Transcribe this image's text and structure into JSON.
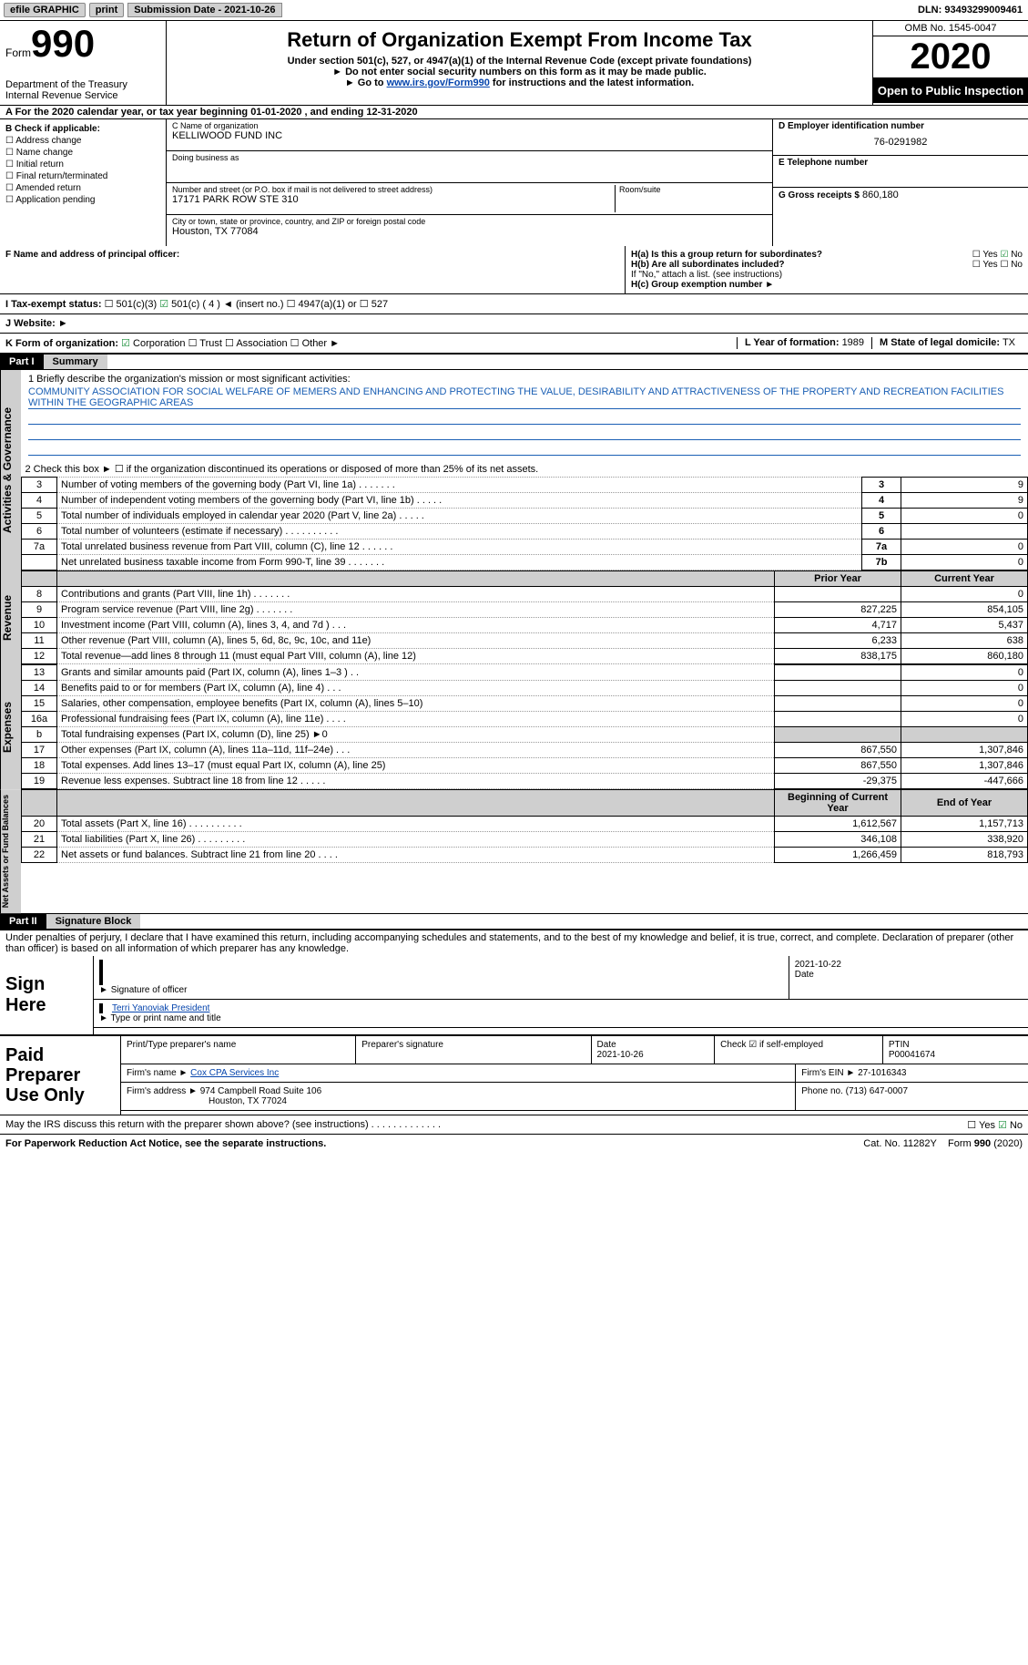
{
  "topbar": {
    "efile": "efile GRAPHIC",
    "print": "print",
    "subdate_label": "Submission Date - 2021-10-26",
    "dln": "DLN: 93493299009461"
  },
  "header": {
    "form_label": "Form",
    "form_no": "990",
    "dept": "Department of the Treasury Internal Revenue Service",
    "title": "Return of Organization Exempt From Income Tax",
    "subtitle": "Under section 501(c), 527, or 4947(a)(1) of the Internal Revenue Code (except private foundations)",
    "note1": "Do not enter social security numbers on this form as it may be made public.",
    "note2_pre": "Go to ",
    "note2_link": "www.irs.gov/Form990",
    "note2_post": " for instructions and the latest information.",
    "omb": "OMB No. 1545-0047",
    "year": "2020",
    "open": "Open to Public Inspection"
  },
  "row_a": "A For the 2020 calendar year, or tax year beginning 01-01-2020   , and ending 12-31-2020",
  "section_b": {
    "label": "B Check if applicable:",
    "opts": [
      "Address change",
      "Name change",
      "Initial return",
      "Final return/terminated",
      "Amended return",
      "Application pending"
    ]
  },
  "section_c": {
    "name_lbl": "C Name of organization",
    "name": "KELLIWOOD FUND INC",
    "dba_lbl": "Doing business as",
    "addr_lbl": "Number and street (or P.O. box if mail is not delivered to street address)",
    "addr": "17171 PARK ROW STE 310",
    "room_lbl": "Room/suite",
    "city_lbl": "City or town, state or province, country, and ZIP or foreign postal code",
    "city": "Houston, TX  77084"
  },
  "section_d": {
    "lbl": "D Employer identification number",
    "val": "76-0291982"
  },
  "section_e": {
    "lbl": "E Telephone number"
  },
  "section_g": {
    "lbl": "G Gross receipts $",
    "val": "860,180"
  },
  "section_f": {
    "lbl": "F  Name and address of principal officer:"
  },
  "section_h": {
    "ha": "H(a)  Is this a group return for subordinates?",
    "hb": "H(b)  Are all subordinates included?",
    "hb_note": "If \"No,\" attach a list. (see instructions)",
    "hc": "H(c)  Group exemption number ►",
    "yes": "Yes",
    "no": "No"
  },
  "tax_status": {
    "lbl": "I    Tax-exempt status:",
    "o1": "501(c)(3)",
    "o2": "501(c) ( 4 ) ◄ (insert no.)",
    "o3": "4947(a)(1) or",
    "o4": "527"
  },
  "website": {
    "lbl": "J   Website: ►"
  },
  "k_org": {
    "lbl": "K Form of organization:",
    "o1": "Corporation",
    "o2": "Trust",
    "o3": "Association",
    "o4": "Other ►",
    "l_lbl": "L Year of formation:",
    "l_val": "1989",
    "m_lbl": "M State of legal domicile:",
    "m_val": "TX"
  },
  "parts": {
    "p1": "Part I",
    "p1t": "Summary",
    "p2": "Part II",
    "p2t": "Signature Block"
  },
  "mission": {
    "lbl": "1   Briefly describe the organization's mission or most significant activities:",
    "text": "COMMUNITY ASSOCIATION FOR SOCIAL WELFARE OF MEMERS AND ENHANCING AND PROTECTING THE VALUE, DESIRABILITY AND ATTRACTIVENESS OF THE PROPERTY AND RECREATION FACILITIES WITHIN THE GEOGRAPHIC AREAS"
  },
  "vtabs": {
    "gov": "Activities & Governance",
    "rev": "Revenue",
    "exp": "Expenses",
    "net": "Net Assets or Fund Balances"
  },
  "gov_lines": {
    "l2": "2   Check this box ► ☐  if the organization discontinued its operations or disposed of more than 25% of its net assets.",
    "l3": "Number of voting members of the governing body (Part VI, line 1a)   .    .    .    .    .    .    .",
    "l4": "Number of independent voting members of the governing body (Part VI, line 1b)   .    .    .    .    .",
    "l5": "Total number of individuals employed in calendar year 2020 (Part V, line 2a)   .    .    .    .    .",
    "l6": "Total number of volunteers (estimate if necessary)   .    .    .    .    .    .    .    .    .    .",
    "l7a": "Total unrelated business revenue from Part VIII, column (C), line 12   .    .    .    .    .    .",
    "l7b": "Net unrelated business taxable income from Form 990-T, line 39   .    .    .    .    .    .    .",
    "v3": "9",
    "v4": "9",
    "v5": "0",
    "v6": "",
    "v7a": "0",
    "v7b": "0"
  },
  "col_hdr": {
    "prior": "Prior Year",
    "current": "Current Year"
  },
  "rev_lines": [
    {
      "n": "8",
      "t": "Contributions and grants (Part VIII, line 1h)   .    .    .    .    .    .    .",
      "p": "",
      "c": "0"
    },
    {
      "n": "9",
      "t": "Program service revenue (Part VIII, line 2g)   .    .    .    .    .    .    .",
      "p": "827,225",
      "c": "854,105"
    },
    {
      "n": "10",
      "t": "Investment income (Part VIII, column (A), lines 3, 4, and 7d )   .    .    .",
      "p": "4,717",
      "c": "5,437"
    },
    {
      "n": "11",
      "t": "Other revenue (Part VIII, column (A), lines 5, 6d, 8c, 9c, 10c, and 11e)",
      "p": "6,233",
      "c": "638"
    },
    {
      "n": "12",
      "t": "Total revenue—add lines 8 through 11 (must equal Part VIII, column (A), line 12)",
      "p": "838,175",
      "c": "860,180"
    }
  ],
  "exp_lines": [
    {
      "n": "13",
      "t": "Grants and similar amounts paid (Part IX, column (A), lines 1–3 )   .    .",
      "p": "",
      "c": "0"
    },
    {
      "n": "14",
      "t": "Benefits paid to or for members (Part IX, column (A), line 4)   .    .    .",
      "p": "",
      "c": "0"
    },
    {
      "n": "15",
      "t": "Salaries, other compensation, employee benefits (Part IX, column (A), lines 5–10)",
      "p": "",
      "c": "0"
    },
    {
      "n": "16a",
      "t": "Professional fundraising fees (Part IX, column (A), line 11e)   .    .    .    .",
      "p": "",
      "c": "0"
    },
    {
      "n": "b",
      "t": "Total fundraising expenses (Part IX, column (D), line 25) ►0",
      "p": "shade",
      "c": "shade"
    },
    {
      "n": "17",
      "t": "Other expenses (Part IX, column (A), lines 11a–11d, 11f–24e)   .    .    .",
      "p": "867,550",
      "c": "1,307,846"
    },
    {
      "n": "18",
      "t": "Total expenses. Add lines 13–17 (must equal Part IX, column (A), line 25)",
      "p": "867,550",
      "c": "1,307,846"
    },
    {
      "n": "19",
      "t": "Revenue less expenses. Subtract line 18 from line 12   .    .    .    .    .",
      "p": "-29,375",
      "c": "-447,666"
    }
  ],
  "net_hdr": {
    "begin": "Beginning of Current Year",
    "end": "End of Year"
  },
  "net_lines": [
    {
      "n": "20",
      "t": "Total assets (Part X, line 16)   .    .    .    .    .    .    .    .    .    .",
      "p": "1,612,567",
      "c": "1,157,713"
    },
    {
      "n": "21",
      "t": "Total liabilities (Part X, line 26)   .    .    .    .    .    .    .    .    .",
      "p": "346,108",
      "c": "338,920"
    },
    {
      "n": "22",
      "t": "Net assets or fund balances. Subtract line 21 from line 20   .    .    .    .",
      "p": "1,266,459",
      "c": "818,793"
    }
  ],
  "penalties": "Under penalties of perjury, I declare that I have examined this return, including accompanying schedules and statements, and to the best of my knowledge and belief, it is true, correct, and complete. Declaration of preparer (other than officer) is based on all information of which preparer has any knowledge.",
  "sign": {
    "here": "Sign Here",
    "sig_lbl": "Signature of officer",
    "date_lbl": "Date",
    "date_val": "2021-10-22",
    "name": "Terri Yanoviak  President",
    "name_lbl": "Type or print name and title"
  },
  "paid": {
    "title": "Paid Preparer Use Only",
    "prep_lbl": "Print/Type preparer's name",
    "sig_lbl": "Preparer's signature",
    "date_lbl": "Date",
    "date_val": "2021-10-26",
    "self_lbl": "Check ☑ if self-employed",
    "ptin_lbl": "PTIN",
    "ptin": "P00041674",
    "firm_name_lbl": "Firm's name    ►",
    "firm_name": "Cox CPA Services Inc",
    "ein_lbl": "Firm's EIN ►",
    "ein": "27-1016343",
    "firm_addr_lbl": "Firm's address ►",
    "firm_addr": "974 Campbell Road Suite 106",
    "firm_city": "Houston, TX  77024",
    "phone_lbl": "Phone no.",
    "phone": "(713) 647-0007"
  },
  "discuss": {
    "q": "May the IRS discuss this return with the preparer shown above? (see instructions)   .    .    .    .    .    .    .    .    .    .    .    .    .",
    "yes": "Yes",
    "no": "No"
  },
  "footer": {
    "pra": "For Paperwork Reduction Act Notice, see the separate instructions.",
    "cat": "Cat. No. 11282Y",
    "form": "Form 990 (2020)"
  },
  "nums": {
    "n3": "3",
    "n4": "4",
    "n5": "5",
    "n6": "6",
    "n7a": "7a",
    "n7b": "7b"
  }
}
